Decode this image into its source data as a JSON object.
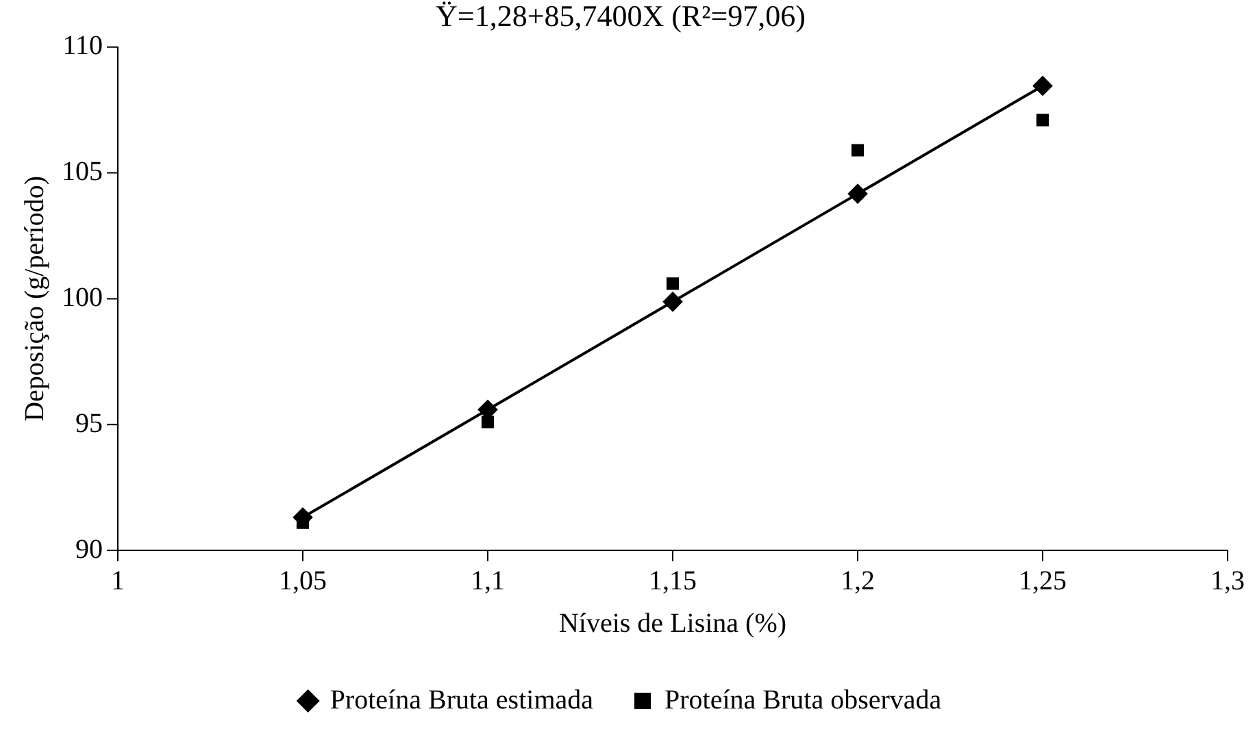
{
  "chart_data": {
    "type": "line",
    "title": "Ÿ=1,28+85,7400X (R²=97,06)",
    "xlabel": "Níveis de Lisina (%)",
    "ylabel": "Deposição (g/período)",
    "x": [
      1.05,
      1.1,
      1.15,
      1.2,
      1.25
    ],
    "series": [
      {
        "name": "Proteína Bruta estimada",
        "type": "line",
        "marker": "diamond",
        "color": "#000000",
        "values": [
          91.31,
          95.59,
          99.88,
          104.17,
          108.46
        ]
      },
      {
        "name": "Proteína Bruta observada",
        "type": "scatter",
        "marker": "square",
        "color": "#000000",
        "values": [
          91.1,
          95.1,
          100.6,
          105.9,
          107.1
        ]
      }
    ],
    "xlim": [
      1,
      1.3
    ],
    "xticks": [
      1,
      {
        "value": 1.05,
        "label": "1,05"
      },
      {
        "value": 1.1,
        "label": "1,1"
      },
      {
        "value": 1.15,
        "label": "1,15"
      },
      {
        "value": 1.2,
        "label": "1,2"
      },
      {
        "value": 1.25,
        "label": "1,25"
      },
      {
        "value": 1.3,
        "label": "1,3"
      }
    ],
    "ylim": [
      90,
      110
    ],
    "yticks": [
      90,
      95,
      100,
      105,
      110
    ],
    "grid": false,
    "legend": "bottom"
  }
}
